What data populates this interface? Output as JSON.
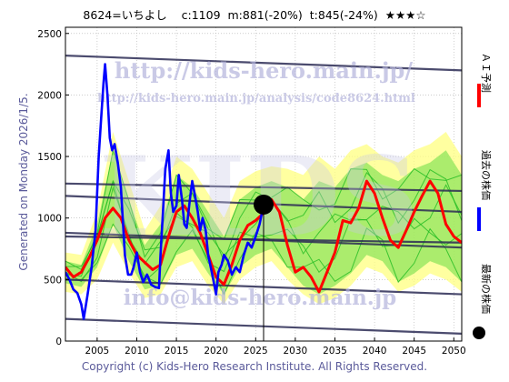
{
  "header": {
    "code": "8624",
    "name": "いちよし",
    "current": "c:1109",
    "min": "m:881(-20%)",
    "target": "t:845(-24%)",
    "rating": "★★★☆"
  },
  "side_label": "Generated on Monday 2026/1/5.",
  "footer": "Copyright (c) Kids-Hero Research Institute. All Rights Reserved.",
  "watermarks": {
    "url_main": "http://kids-hero.main.jp/",
    "url_analysis": "http://kids-hero.main.jp/analysis/code8624.html",
    "logo": "KIDS",
    "email": "info@kids-hero.main.jp"
  },
  "legend": [
    {
      "label": "ＡＩ予測",
      "color": "#ff0000"
    },
    {
      "label": "過去の株価",
      "color": "#0000ff"
    },
    {
      "label": "最新の株価",
      "color": "#000000"
    }
  ],
  "colors": {
    "grid": "#b0b0b0",
    "trend": "#2b2b55",
    "band_outer": "#ffff80",
    "band_inner": "#66dd44",
    "sim_line": "#22bb22",
    "history": "#0000ff",
    "prediction": "#ff0000",
    "current_marker": "#000000"
  },
  "chart_data": {
    "type": "line",
    "xlim": [
      2001,
      2051
    ],
    "ylim": [
      0,
      2550
    ],
    "xticks": [
      2005,
      2010,
      2015,
      2020,
      2025,
      2030,
      2035,
      2040,
      2045,
      2050
    ],
    "yticks": [
      0,
      500,
      1000,
      1500,
      2000,
      2500
    ],
    "grid": true,
    "current_point": {
      "x": 2026.0,
      "y": 1109
    },
    "history": {
      "name": "過去の株価",
      "x": [
        2001.0,
        2001.5,
        2002.0,
        2002.5,
        2003.0,
        2003.3,
        2003.8,
        2004.3,
        2004.8,
        2005.2,
        2005.5,
        2005.8,
        2006.0,
        2006.3,
        2006.6,
        2006.9,
        2007.2,
        2007.6,
        2008.0,
        2008.5,
        2008.9,
        2009.3,
        2009.6,
        2010.0,
        2010.4,
        2010.8,
        2011.3,
        2011.8,
        2012.3,
        2012.8,
        2013.0,
        2013.3,
        2013.6,
        2014.0,
        2014.3,
        2014.6,
        2015.0,
        2015.3,
        2015.7,
        2016.0,
        2016.3,
        2016.7,
        2017.0,
        2017.3,
        2017.7,
        2018.0,
        2018.3,
        2018.7,
        2019.0,
        2019.5,
        2020.0,
        2020.3,
        2020.7,
        2021.0,
        2021.5,
        2022.0,
        2022.5,
        2023.0,
        2023.5,
        2024.0,
        2024.5,
        2025.0,
        2025.5,
        2026.0
      ],
      "y": [
        560,
        500,
        420,
        390,
        300,
        180,
        380,
        600,
        900,
        1500,
        1800,
        2100,
        2250,
        2000,
        1650,
        1550,
        1600,
        1450,
        1250,
        700,
        540,
        540,
        600,
        720,
        560,
        480,
        540,
        460,
        440,
        430,
        700,
        1050,
        1400,
        1550,
        1200,
        1050,
        1100,
        1350,
        1150,
        950,
        920,
        1150,
        1300,
        1200,
        1050,
        900,
        1000,
        900,
        700,
        550,
        380,
        560,
        620,
        700,
        650,
        540,
        600,
        560,
        700,
        800,
        760,
        850,
        950,
        1109
      ]
    },
    "prediction": {
      "name": "ＡＩ予測",
      "x": [
        2001.0,
        2002.0,
        2003.0,
        2004.0,
        2005.0,
        2006.0,
        2007.0,
        2008.0,
        2009.0,
        2010.0,
        2011.0,
        2012.0,
        2013.0,
        2014.0,
        2015.0,
        2016.0,
        2017.0,
        2018.0,
        2019.0,
        2020.0,
        2021.0,
        2022.0,
        2023.0,
        2024.0,
        2025.0,
        2026.0,
        2027.0,
        2028.0,
        2029.0,
        2030.0,
        2031.0,
        2032.0,
        2033.0,
        2034.0,
        2035.0,
        2036.0,
        2037.0,
        2038.0,
        2039.0,
        2040.0,
        2041.0,
        2042.0,
        2043.0,
        2044.0,
        2045.0,
        2046.0,
        2047.0,
        2048.0,
        2049.0,
        2050.0,
        2051.0
      ],
      "y": [
        600,
        520,
        560,
        680,
        820,
        1000,
        1080,
        1000,
        820,
        700,
        640,
        580,
        620,
        850,
        1050,
        1100,
        1000,
        880,
        700,
        520,
        460,
        620,
        820,
        940,
        980,
        1040,
        1150,
        1050,
        780,
        560,
        600,
        520,
        400,
        560,
        720,
        980,
        960,
        1080,
        1300,
        1200,
        1000,
        820,
        760,
        900,
        1050,
        1180,
        1300,
        1200,
        950,
        850,
        800
      ]
    },
    "band_outer": {
      "x": [
        2001.0,
        2003.0,
        2005.0,
        2007.0,
        2009.0,
        2011.0,
        2013.0,
        2015.0,
        2017.0,
        2019.0,
        2021.0,
        2023.0,
        2025.0,
        2027.0,
        2029.0,
        2031.0,
        2033.0,
        2035.0,
        2037.0,
        2039.0,
        2041.0,
        2043.0,
        2045.0,
        2047.0,
        2049.0,
        2051.0
      ],
      "upper": [
        720,
        700,
        1050,
        1700,
        1300,
        900,
        1100,
        1500,
        1400,
        1200,
        1000,
        1300,
        1380,
        1420,
        1400,
        1350,
        1500,
        1400,
        1550,
        1600,
        1500,
        1450,
        1550,
        1600,
        1700,
        1500
      ],
      "lower": [
        400,
        380,
        500,
        800,
        560,
        350,
        380,
        600,
        650,
        450,
        300,
        500,
        600,
        650,
        500,
        380,
        300,
        350,
        450,
        600,
        550,
        400,
        450,
        550,
        500,
        400
      ]
    },
    "band_inner": {
      "x": [
        2001.0,
        2003.0,
        2005.0,
        2007.0,
        2009.0,
        2011.0,
        2013.0,
        2015.0,
        2017.0,
        2019.0,
        2021.0,
        2023.0,
        2025.0,
        2027.0,
        2029.0,
        2031.0,
        2033.0,
        2035.0,
        2037.0,
        2039.0,
        2041.0,
        2043.0,
        2045.0,
        2047.0,
        2049.0,
        2051.0
      ],
      "upper": [
        650,
        620,
        950,
        1550,
        1150,
        780,
        950,
        1350,
        1250,
        1050,
        850,
        1150,
        1250,
        1300,
        1250,
        1150,
        1300,
        1250,
        1400,
        1450,
        1350,
        1300,
        1400,
        1450,
        1550,
        1350
      ],
      "lower": [
        470,
        440,
        600,
        950,
        650,
        420,
        450,
        700,
        750,
        550,
        380,
        600,
        700,
        750,
        600,
        450,
        380,
        450,
        550,
        700,
        650,
        480,
        550,
        650,
        600,
        480
      ]
    },
    "trend_lines": [
      {
        "x": [
          2001,
          2051
        ],
        "y": [
          2320,
          2200
        ]
      },
      {
        "x": [
          2001,
          2051
        ],
        "y": [
          1280,
          1220
        ]
      },
      {
        "x": [
          2001,
          2051
        ],
        "y": [
          1180,
          1050
        ]
      },
      {
        "x": [
          2001,
          2051
        ],
        "y": [
          880,
          760
        ]
      },
      {
        "x": [
          2001,
          2051
        ],
        "y": [
          850,
          800
        ]
      },
      {
        "x": [
          2001,
          2051
        ],
        "y": [
          500,
          380
        ]
      },
      {
        "x": [
          2001,
          2051
        ],
        "y": [
          180,
          60
        ]
      }
    ]
  }
}
